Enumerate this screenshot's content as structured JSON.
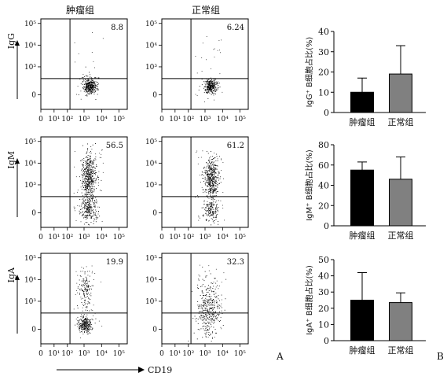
{
  "figure": {
    "group_labels": [
      "肿瘤组",
      "正常组"
    ],
    "x_axis_label": "CD19",
    "panel_labels": {
      "a": "A",
      "b": "B"
    }
  },
  "flow": {
    "x_ticks": [
      "0",
      "10¹",
      "10²",
      "10³",
      "10⁴",
      "10⁵"
    ],
    "y_ticks": [
      "0",
      "10³",
      "10⁴",
      "10⁵"
    ],
    "rows": [
      {
        "marker": "IgG",
        "tumor_pct": "8.8",
        "normal_pct": "6.24"
      },
      {
        "marker": "IgM",
        "tumor_pct": "56.5",
        "normal_pct": "61.2"
      },
      {
        "marker": "IgA",
        "tumor_pct": "19.9",
        "normal_pct": "32.3"
      }
    ]
  },
  "chart_data": [
    {
      "type": "bar",
      "categories": [
        "肿瘤组",
        "正常组"
      ],
      "values": [
        10,
        19
      ],
      "errors": [
        7,
        14
      ],
      "ylabel": "IgG⁺ B细胞占比(%)",
      "ylim": [
        0,
        40
      ],
      "yticks": [
        0,
        10,
        20,
        30,
        40
      ],
      "colors": [
        "#000000",
        "#808080"
      ]
    },
    {
      "type": "bar",
      "categories": [
        "肿瘤组",
        "正常组"
      ],
      "values": [
        55,
        46
      ],
      "errors": [
        8,
        22
      ],
      "ylabel": "IgM⁺ B细胞占比(%)",
      "ylim": [
        0,
        80
      ],
      "yticks": [
        0,
        20,
        40,
        60,
        80
      ],
      "colors": [
        "#000000",
        "#808080"
      ]
    },
    {
      "type": "bar",
      "categories": [
        "肿瘤组",
        "正常组"
      ],
      "values": [
        25,
        23.5
      ],
      "errors": [
        17,
        6
      ],
      "ylabel": "IgA⁺ B细胞占比(%)",
      "ylim": [
        0,
        50
      ],
      "yticks": [
        0,
        10,
        20,
        30,
        40,
        50
      ],
      "colors": [
        "#000000",
        "#808080"
      ]
    }
  ]
}
